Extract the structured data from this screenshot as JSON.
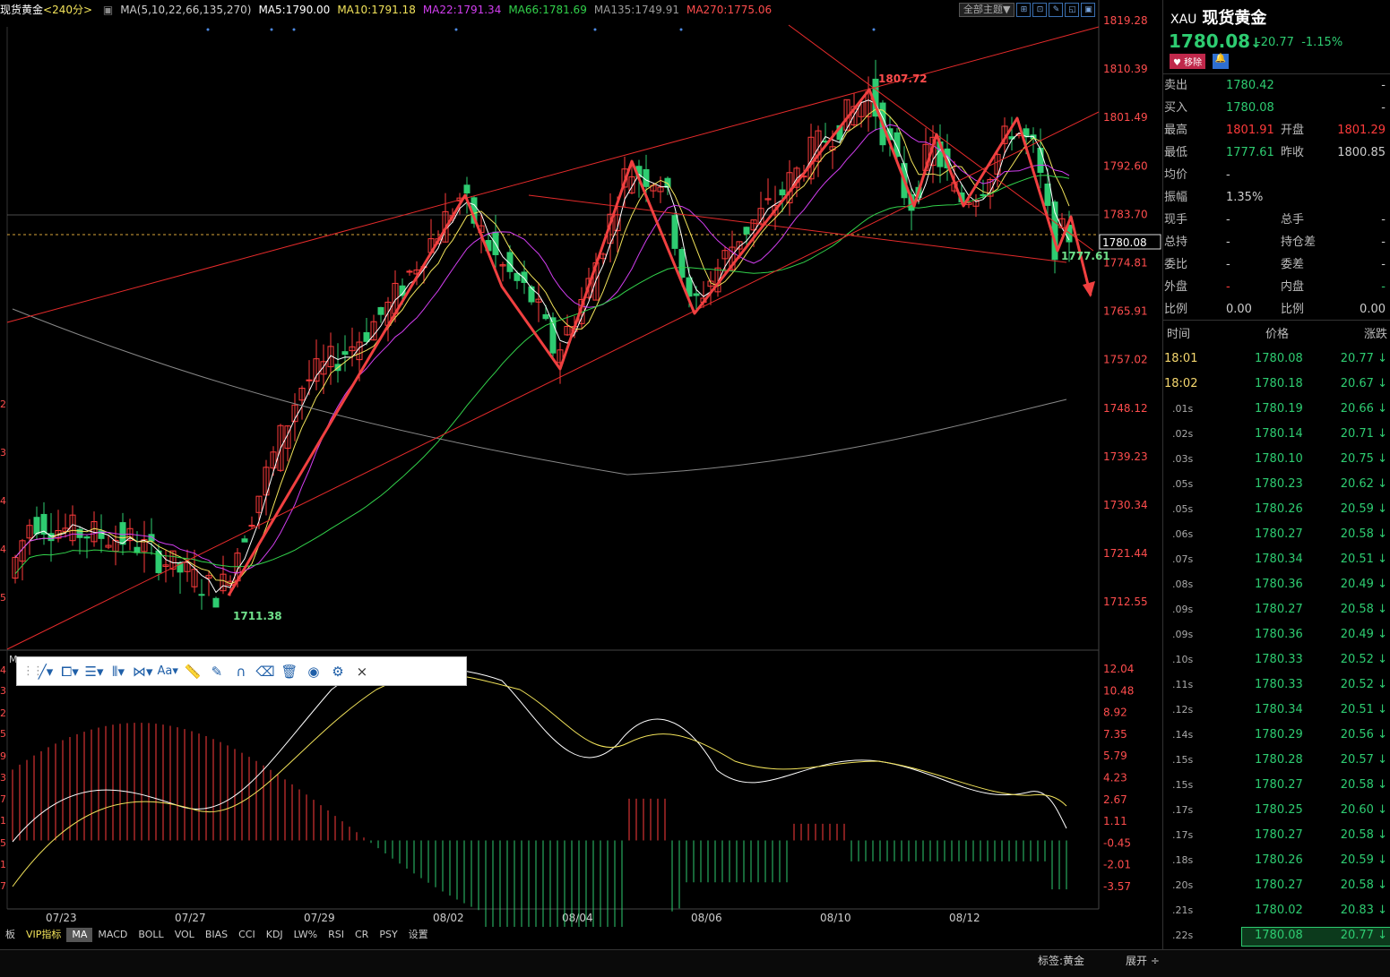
{
  "colors": {
    "up": "#ff3b3b",
    "down": "#2ecc71",
    "bg": "#000000",
    "accent": "#3a6fb0"
  },
  "chart": {
    "symbol_label": "现货黄金",
    "period": "<240分>",
    "ma_legend": [
      {
        "text": "MA(5,10,22,66,135,270)",
        "color": "#cccccc"
      },
      {
        "text": "MA5:1790.00",
        "color": "#ffffff"
      },
      {
        "text": "MA10:1791.18",
        "color": "#f2e35a"
      },
      {
        "text": "MA22:1791.34",
        "color": "#d23ef0"
      },
      {
        "text": "MA66:1781.69",
        "color": "#32d24b"
      },
      {
        "text": "MA135:1749.91",
        "color": "#9a9a9a"
      },
      {
        "text": "MA270:1775.06",
        "color": "#ff4d4d"
      }
    ],
    "theme_button": "全部主题▼",
    "price_axis": [
      "1819.28",
      "1810.39",
      "1801.49",
      "1792.60",
      "1783.70",
      "1774.81",
      "1765.91",
      "1757.02",
      "1748.12",
      "1739.23",
      "1730.34",
      "1721.44",
      "1712.55"
    ],
    "current_price_tag": "1780.08",
    "high_label": "1807.72",
    "low_label": "1711.38",
    "recent_low_label": "1777.61",
    "macd_axis": [
      "12.04",
      "10.48",
      "8.92",
      "7.35",
      "5.79",
      "4.23",
      "2.67",
      "1.11",
      "-0.45",
      "-2.01",
      "-3.57"
    ],
    "date_axis": [
      "07/23",
      "07/27",
      "07/29",
      "08/02",
      "08/04",
      "08/06",
      "08/10",
      "08/12"
    ],
    "left_edge_labels": [
      "2",
      "3",
      "4",
      "4",
      "5"
    ]
  },
  "draw_toolbar": {
    "tools": [
      "line-tool",
      "shape-tool",
      "fib-tool",
      "parallel-tool",
      "pattern-tool",
      "Aa",
      "ruler-tool",
      "pen-tool",
      "magnet-tool",
      "eraser-tool",
      "trash-tool",
      "eye-tool",
      "settings-tool",
      "×"
    ]
  },
  "tabs": [
    "板",
    "VIP指标",
    "MA",
    "MACD",
    "BOLL",
    "VOL",
    "BIAS",
    "CCI",
    "KDJ",
    "LW%",
    "RSI",
    "CR",
    "PSY",
    "设置"
  ],
  "bottom": {
    "tag": "标签:黄金",
    "expand": "展开 ÷"
  },
  "panel": {
    "code": "XAU",
    "name": "现货黄金",
    "price": "1780.08",
    "arrow": "↓",
    "change": "-20.77",
    "pct": "-1.15%",
    "remove_btn": "♥ 移除",
    "quote": [
      {
        "l1": "卖出",
        "v1": "1780.42",
        "c1": "#2ecc71",
        "l2": "",
        "v2": "-",
        "c2": "#ccc"
      },
      {
        "l1": "买入",
        "v1": "1780.08",
        "c1": "#2ecc71",
        "l2": "",
        "v2": "-",
        "c2": "#ccc"
      },
      {
        "l1": "最高",
        "v1": "1801.91",
        "c1": "#ff3b3b",
        "l2": "开盘",
        "v2": "1801.29",
        "c2": "#ff3b3b"
      },
      {
        "l1": "最低",
        "v1": "1777.61",
        "c1": "#2ecc71",
        "l2": "昨收",
        "v2": "1800.85",
        "c2": "#ccc"
      },
      {
        "l1": "均价",
        "v1": "-",
        "c1": "#ccc",
        "l2": "",
        "v2": "",
        "c2": "#ccc"
      },
      {
        "l1": "振幅",
        "v1": "1.35%",
        "c1": "#ccc",
        "l2": "",
        "v2": "",
        "c2": "#ccc"
      },
      {
        "l1": "现手",
        "v1": "-",
        "c1": "#ccc",
        "l2": "总手",
        "v2": "-",
        "c2": "#ccc"
      },
      {
        "l1": "总持",
        "v1": "-",
        "c1": "#ccc",
        "l2": "持仓差",
        "v2": "-",
        "c2": "#ccc"
      },
      {
        "l1": "委比",
        "v1": "-",
        "c1": "#ccc",
        "l2": "委差",
        "v2": "-",
        "c2": "#ccc"
      },
      {
        "l1": "外盘",
        "v1": "-",
        "c1": "#ff3b3b",
        "l2": "内盘",
        "v2": "-",
        "c2": "#2ecc71"
      },
      {
        "l1": "比例",
        "v1": "0.00",
        "c1": "#ccc",
        "l2": "比例",
        "v2": "0.00",
        "c2": "#ccc"
      }
    ],
    "tick_headers": [
      "时间",
      "价格",
      "涨跌"
    ],
    "ticks": [
      {
        "t": "18:01",
        "p": "1780.08",
        "c": "20.77"
      },
      {
        "t": "18:02",
        "p": "1780.18",
        "c": "20.67"
      },
      {
        "t": ".01s",
        "p": "1780.19",
        "c": "20.66"
      },
      {
        "t": ".02s",
        "p": "1780.14",
        "c": "20.71"
      },
      {
        "t": ".03s",
        "p": "1780.10",
        "c": "20.75"
      },
      {
        "t": ".05s",
        "p": "1780.23",
        "c": "20.62"
      },
      {
        "t": ".05s",
        "p": "1780.26",
        "c": "20.59"
      },
      {
        "t": ".06s",
        "p": "1780.27",
        "c": "20.58"
      },
      {
        "t": ".07s",
        "p": "1780.34",
        "c": "20.51"
      },
      {
        "t": ".08s",
        "p": "1780.36",
        "c": "20.49"
      },
      {
        "t": ".09s",
        "p": "1780.27",
        "c": "20.58"
      },
      {
        "t": ".09s",
        "p": "1780.36",
        "c": "20.49"
      },
      {
        "t": ".10s",
        "p": "1780.33",
        "c": "20.52"
      },
      {
        "t": ".11s",
        "p": "1780.33",
        "c": "20.52"
      },
      {
        "t": ".12s",
        "p": "1780.34",
        "c": "20.51"
      },
      {
        "t": ".14s",
        "p": "1780.29",
        "c": "20.56"
      },
      {
        "t": ".15s",
        "p": "1780.28",
        "c": "20.57"
      },
      {
        "t": ".15s",
        "p": "1780.27",
        "c": "20.58"
      },
      {
        "t": ".17s",
        "p": "1780.25",
        "c": "20.60"
      },
      {
        "t": ".17s",
        "p": "1780.27",
        "c": "20.58"
      },
      {
        "t": ".18s",
        "p": "1780.26",
        "c": "20.59"
      },
      {
        "t": ".20s",
        "p": "1780.27",
        "c": "20.58"
      },
      {
        "t": ".21s",
        "p": "1780.02",
        "c": "20.83"
      },
      {
        "t": ".22s",
        "p": "1780.08",
        "c": "20.77"
      }
    ]
  }
}
